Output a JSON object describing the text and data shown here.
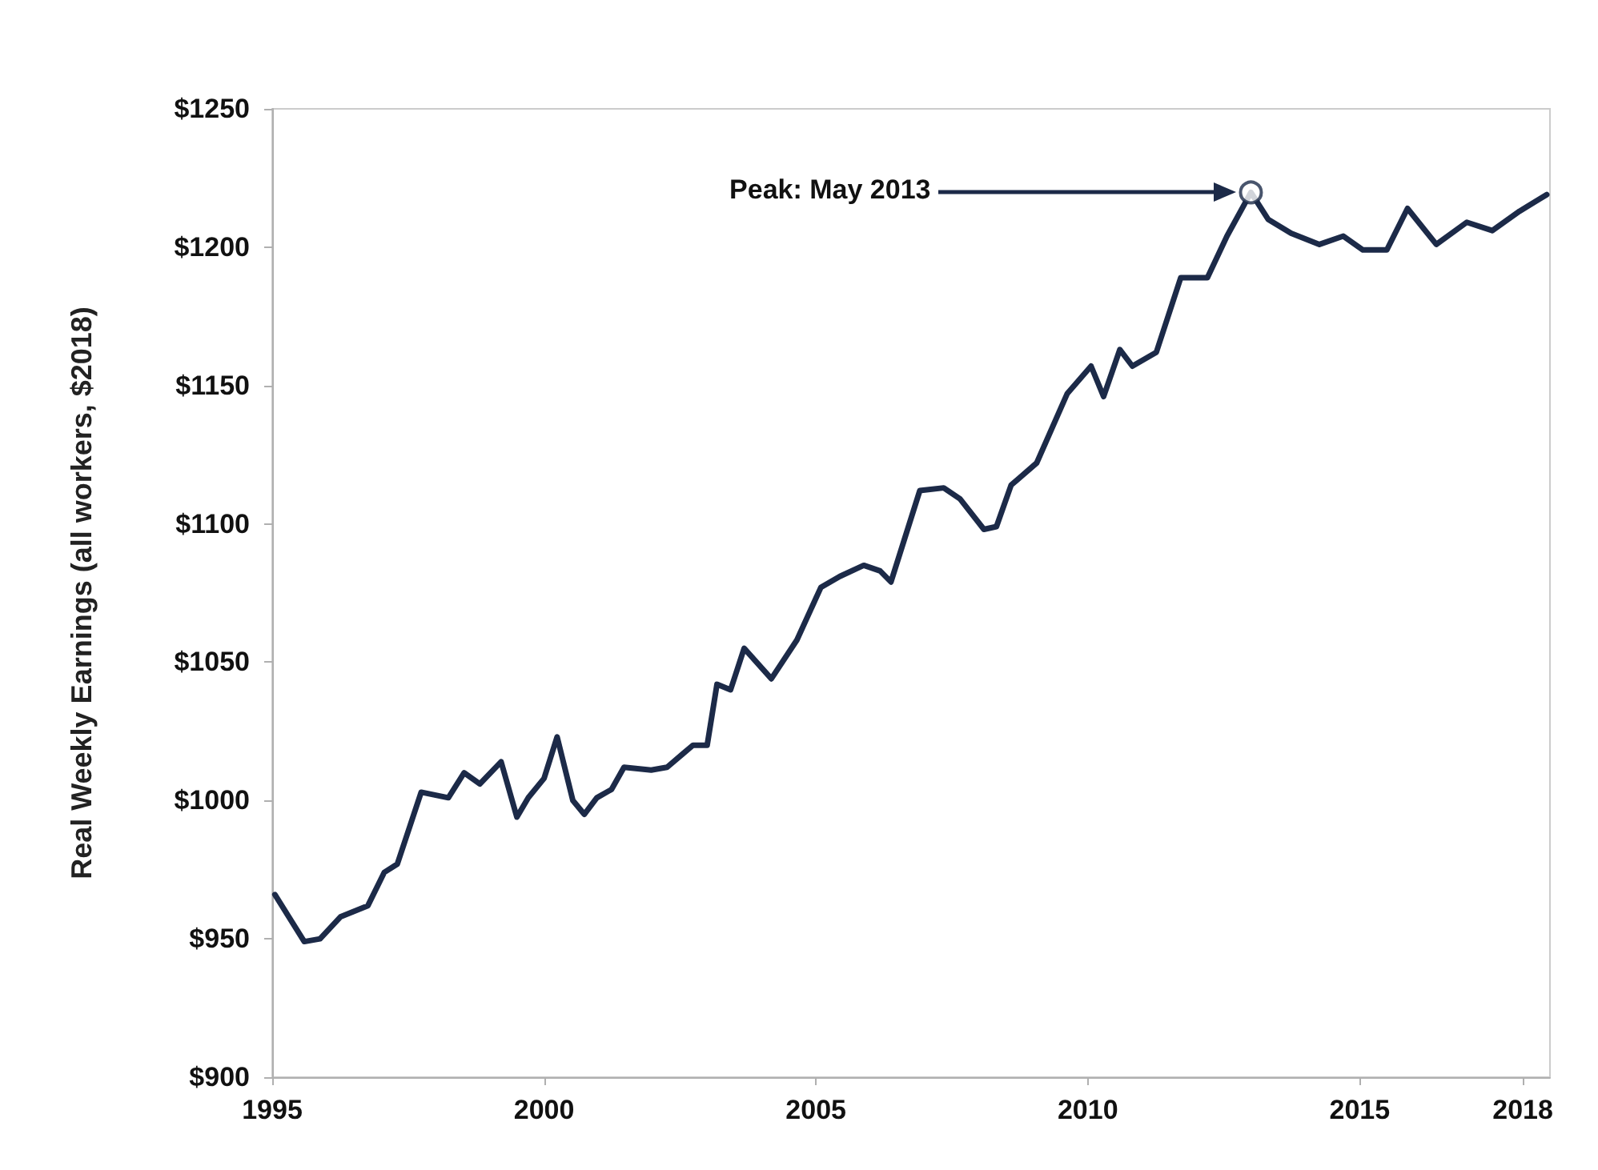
{
  "chart_data": {
    "type": "line",
    "ylabel": "Real Weekly Earnings (all workers, $2018)",
    "annotations": [
      "Peak: May 2013"
    ],
    "x": [
      1995.05,
      1995.59,
      1995.88,
      1996.26,
      1996.76,
      1997.06,
      1997.3,
      1997.74,
      1998.24,
      1998.53,
      1998.82,
      1999.21,
      1999.5,
      1999.71,
      2000.0,
      2000.24,
      2000.53,
      2000.74,
      2000.97,
      2001.24,
      2001.47,
      2001.97,
      2002.26,
      2002.56,
      2002.74,
      2003.0,
      2003.18,
      2003.43,
      2003.68,
      2004.18,
      2004.65,
      2005.09,
      2005.44,
      2005.88,
      2006.18,
      2006.38,
      2006.91,
      2007.35,
      2007.65,
      2008.09,
      2008.32,
      2008.59,
      2009.06,
      2009.62,
      2010.06,
      2010.29,
      2010.59,
      2010.82,
      2011.26,
      2011.71,
      2012.2,
      2012.56,
      2013.0,
      2013.32,
      2013.74,
      2014.26,
      2014.7,
      2015.06,
      2015.5,
      2015.88,
      2016.41,
      2016.97,
      2017.44,
      2017.94,
      2018.44
    ],
    "series": [
      {
        "color": "#1c2a48",
        "values": [
          966,
          949,
          950,
          958,
          962,
          974,
          977,
          1003,
          1001,
          1010,
          1006,
          1014,
          994,
          1001,
          1008,
          1023,
          1000,
          995,
          1001,
          1004,
          1012,
          1011,
          1012,
          1017,
          1020,
          1020,
          1042,
          1040,
          1055,
          1044,
          1058,
          1077,
          1081,
          1085,
          1083,
          1079,
          1112,
          1113,
          1109,
          1098,
          1099,
          1114,
          1122,
          1147,
          1157,
          1146,
          1163,
          1157,
          1162,
          1189,
          1189,
          1204,
          1219.8,
          1210,
          1205,
          1201,
          1204,
          1199,
          1199,
          1214,
          1201,
          1209,
          1206,
          1213,
          1219
        ]
      },
      {
        "type": "scatter",
        "marker": "circle",
        "color": "#1c2a48",
        "x": [
          2013.0
        ],
        "values": [
          1219.8
        ]
      }
    ],
    "xlim": [
      1995,
      2018.5
    ],
    "xticks": [
      1995,
      2000,
      2005,
      2010,
      2015,
      2018
    ],
    "ylim": [
      900,
      1250
    ],
    "yticks": [
      {
        "value": 900,
        "label": "$900"
      },
      {
        "value": 950,
        "label": "$950"
      },
      {
        "value": 1000,
        "label": "$1000"
      },
      {
        "value": 1050,
        "label": "$1050"
      },
      {
        "value": 1100,
        "label": "$1100"
      },
      {
        "value": 1150,
        "label": "$1150"
      },
      {
        "value": 1200,
        "label": "$1200"
      },
      {
        "value": 1250,
        "label": "$1250"
      }
    ],
    "grid": false,
    "marker": "none",
    "line_style": "solid"
  }
}
